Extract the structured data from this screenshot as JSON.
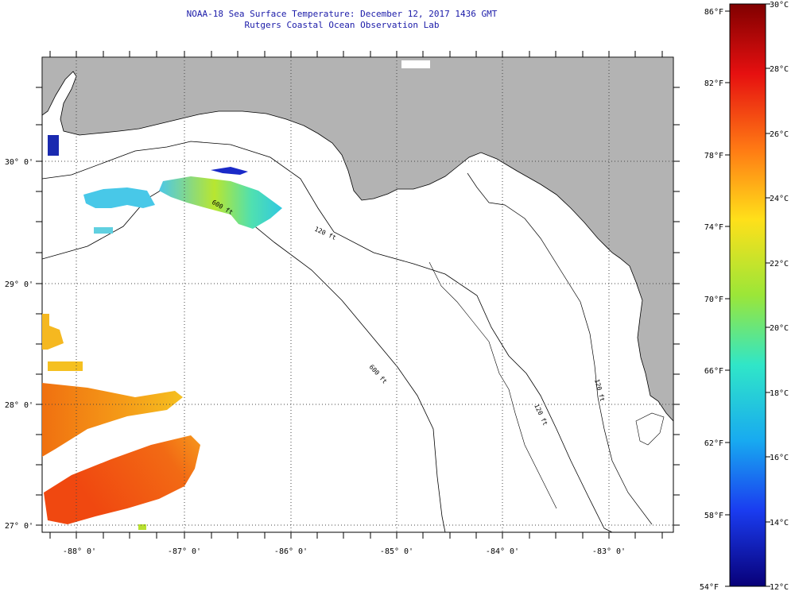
{
  "header": {
    "title": "NOAA-18 Sea Surface Temperature:  December 12, 2017 1436 GMT",
    "subtitle": "Rutgers Coastal Ocean Observation Lab"
  },
  "map": {
    "lat_labels": [
      "30° 0'",
      "29° 0'",
      "28° 0'",
      "27° 0'"
    ],
    "lon_labels": [
      "-88° 0'",
      "-87° 0'",
      "-86° 0'",
      "-85° 0'",
      "-84° 0'",
      "-83° 0'"
    ],
    "contour_labels": {
      "c120_a": "120 ft",
      "c600_a": "600 ft",
      "c600_b": "600 ft",
      "c120_b": "120 ft",
      "c120_c": "120 ft"
    },
    "colors": {
      "land": "#b3b3b3",
      "grid": "#444444"
    }
  },
  "colorbar": {
    "fahrenheit": [
      "86°F",
      "82°F",
      "78°F",
      "74°F",
      "70°F",
      "66°F",
      "62°F",
      "58°F",
      "54°F"
    ],
    "celsius": [
      "30°C",
      "28°C",
      "26°C",
      "24°C",
      "22°C",
      "20°C",
      "18°C",
      "16°C",
      "14°C",
      "12°C"
    ],
    "gradient": [
      "#800000",
      "#e61010",
      "#ff7a14",
      "#ffe01a",
      "#9be638",
      "#30e6c8",
      "#18aaf0",
      "#1a3cf0",
      "#080078"
    ]
  }
}
